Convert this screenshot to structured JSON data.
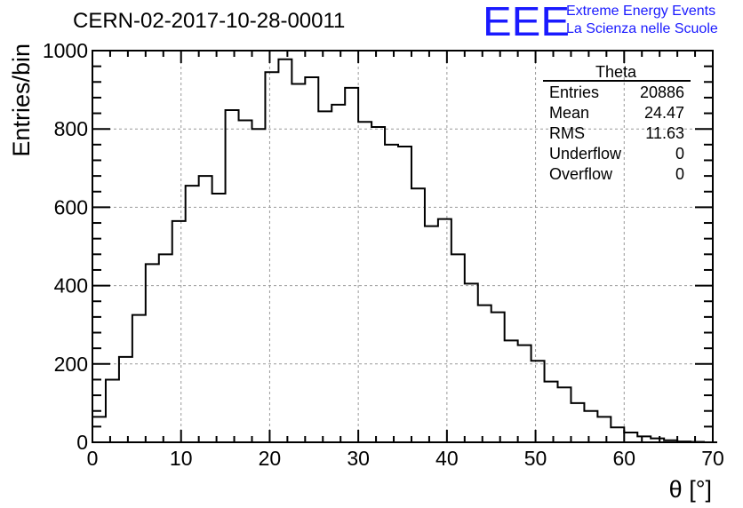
{
  "header": {
    "title": "CERN-02-2017-10-28-00011",
    "logo_text": "EEE",
    "org_line1": "Extreme Energy Events",
    "org_line2": "La Scienza nelle Scuole",
    "logo_color": "#1a1aff"
  },
  "stats": {
    "name": "Theta",
    "rows": [
      {
        "label": "Entries",
        "value": "20886"
      },
      {
        "label": "Mean",
        "value": "24.47"
      },
      {
        "label": "RMS",
        "value": "11.63"
      },
      {
        "label": "Underflow",
        "value": "0"
      },
      {
        "label": "Overflow",
        "value": "0"
      }
    ]
  },
  "chart_data": {
    "type": "bar",
    "histogram": "step",
    "title": "CERN-02-2017-10-28-00011",
    "xlabel": "θ [°]",
    "ylabel": "Entries/bin",
    "xlim": [
      0,
      70
    ],
    "ylim": [
      0,
      1000
    ],
    "grid": true,
    "bin_width": 1.5,
    "bin_edges_start": 0,
    "xticks": [
      0,
      10,
      20,
      30,
      40,
      50,
      60,
      70
    ],
    "yticks": [
      0,
      200,
      400,
      600,
      800,
      1000
    ],
    "values": [
      65,
      160,
      218,
      325,
      455,
      480,
      565,
      655,
      680,
      635,
      848,
      822,
      800,
      945,
      978,
      915,
      932,
      845,
      862,
      905,
      818,
      805,
      760,
      755,
      648,
      552,
      570,
      480,
      405,
      350,
      332,
      260,
      248,
      208,
      155,
      140,
      100,
      80,
      65,
      38,
      25,
      15,
      10,
      5,
      2,
      1,
      0
    ]
  }
}
